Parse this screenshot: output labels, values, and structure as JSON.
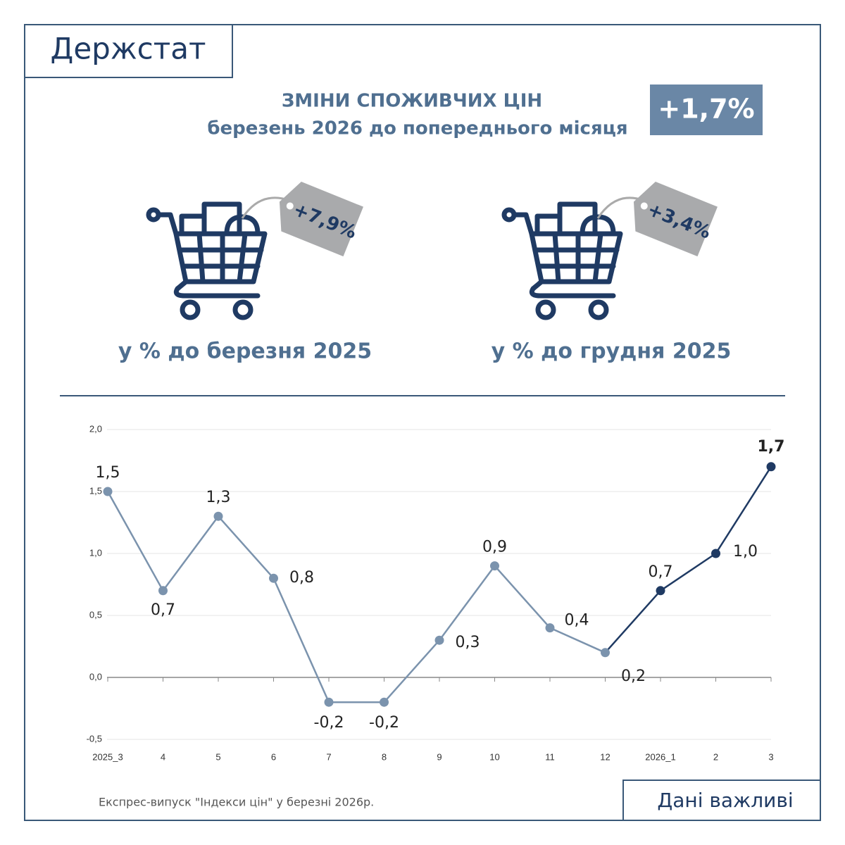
{
  "header": {
    "logo": "Держстат",
    "title": "ЗМІНИ СПОЖИВЧИХ ЦІН",
    "subtitle": "березень 2026 до попереднього місяця",
    "headline": "+1,7%"
  },
  "indicators": [
    {
      "value_label": "+7,9%",
      "caption": "у % до березня 2025"
    },
    {
      "value_label": "+3,4%",
      "caption": "у % до грудня 2025"
    }
  ],
  "chart_data": {
    "type": "line",
    "categories": [
      "2025_3",
      "4",
      "5",
      "6",
      "7",
      "8",
      "9",
      "10",
      "11",
      "12",
      "2026_1",
      "2",
      "3"
    ],
    "values": [
      1.5,
      0.7,
      1.3,
      0.8,
      -0.2,
      -0.2,
      0.3,
      0.9,
      0.4,
      0.2,
      0.7,
      1.0,
      1.7
    ],
    "value_labels": [
      "1,5",
      "0,7",
      "1,3",
      "0,8",
      "-0,2",
      "-0,2",
      "0,3",
      "0,9",
      "0,4",
      "0,2",
      "0,7",
      "1,0",
      "1,7"
    ],
    "point_colors": [
      "#7b93ad",
      "#7b93ad",
      "#7b93ad",
      "#7b93ad",
      "#7b93ad",
      "#7b93ad",
      "#7b93ad",
      "#7b93ad",
      "#7b93ad",
      "#7b93ad",
      "#1f3a63",
      "#1f3a63",
      "#1f3a63"
    ],
    "ylim": [
      -0.5,
      2.0
    ],
    "yticks": [
      {
        "value": -0.5,
        "label": "-0,5"
      },
      {
        "value": 0,
        "label": "0,0"
      },
      {
        "value": 0.5,
        "label": "0,5"
      },
      {
        "value": 1,
        "label": "1,0"
      },
      {
        "value": 1.5,
        "label": "1,5"
      },
      {
        "value": 2,
        "label": "2,0"
      }
    ],
    "grid": true
  },
  "footer": {
    "note": "Експрес-випуск \"Індекси цін\" у березні 2026р.",
    "tag": "Дані важливі"
  }
}
